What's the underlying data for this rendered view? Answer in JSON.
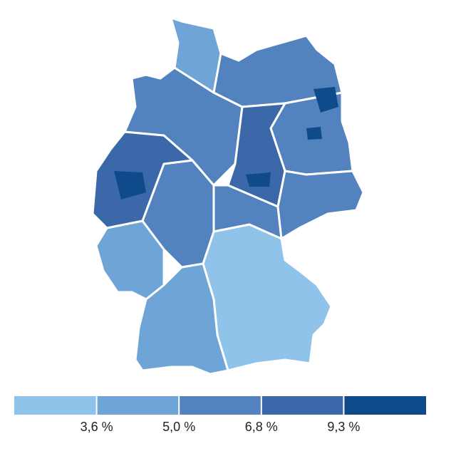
{
  "legend": {
    "colors": [
      "#8fc3ea",
      "#6ea4d6",
      "#5283bf",
      "#3a68a8",
      "#0f4a8a"
    ],
    "labels": [
      "3,6 %",
      "5,0 %",
      "6,8 %",
      "9,3 %"
    ]
  }
}
